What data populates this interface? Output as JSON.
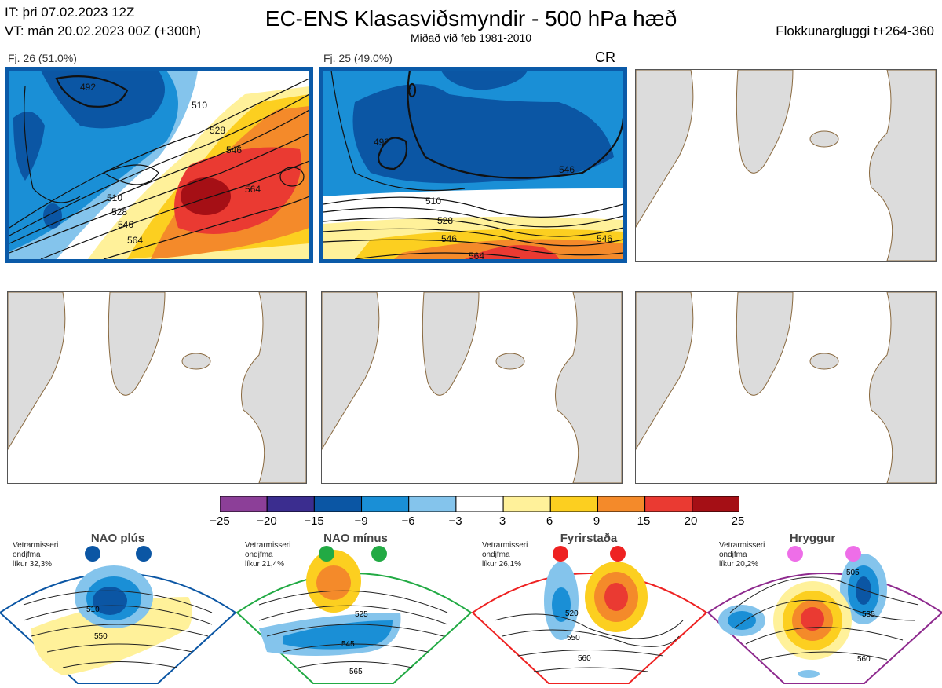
{
  "header": {
    "it": "IT: þri 07.02.2023 12Z",
    "vt": "VT: mán 20.02.2023 00Z  (+300h)",
    "title": "EC-ENS Klasasviðsmyndir - 500 hPa hæð",
    "subtitle": "Miðað við feb 1981-2010",
    "window": "Flokkunargluggi t+264-360"
  },
  "panels": [
    {
      "label": "Fj. 26 (51.0%)",
      "members": 26,
      "percent": 51.0,
      "tag": "",
      "contours": [
        "492",
        "510",
        "528",
        "546",
        "564",
        "510",
        "528",
        "546",
        "564"
      ]
    },
    {
      "label": "Fj. 25 (49.0%)",
      "members": 25,
      "percent": 49.0,
      "tag": "CR",
      "contours": [
        "0",
        "492",
        "510",
        "528",
        "546",
        "564",
        "546",
        "546"
      ]
    }
  ],
  "colorbar": {
    "ticks": [
      "−25",
      "−20",
      "−15",
      "−9",
      "−6",
      "−3",
      "3",
      "6",
      "9",
      "15",
      "20",
      "25"
    ],
    "colors": [
      "#8c3f98",
      "#3b2d8f",
      "#0b56a4",
      "#1a8fd6",
      "#84c4ec",
      "#ffffff",
      "#fff19a",
      "#fccf20",
      "#f48a2a",
      "#ea3a32",
      "#a50f15"
    ]
  },
  "chart_data": {
    "type": "heatmap",
    "title": "EC-ENS Klasasviðsmyndir - 500 hPa hæð",
    "subtitle": "Miðað við feb 1981-2010",
    "variable": "500 hPa geopotential height (dam) with anomaly shading",
    "cluster_members": [
      26,
      25
    ],
    "cluster_percent": [
      51.0,
      49.0
    ],
    "anomaly_levels": [
      -25,
      -20,
      -15,
      -9,
      -6,
      -3,
      3,
      6,
      9,
      15,
      20,
      25
    ],
    "empty_panels": 4
  },
  "regimes": [
    {
      "name": "NAO plús",
      "note": [
        "Vetrarmisseri",
        "ondjfma",
        "líkur 32,3%"
      ],
      "color": "#0b56a4",
      "border": "#0b56a4",
      "labels": [
        "510",
        "550"
      ]
    },
    {
      "name": "NAO mínus",
      "note": [
        "Vetrarmisseri",
        "ondjfma",
        "líkur 21,4%"
      ],
      "color": "#22aa44",
      "border": "#22aa44",
      "labels": [
        "525",
        "545",
        "565"
      ]
    },
    {
      "name": "Fyrirstaða",
      "note": [
        "Vetrarmisseri",
        "ondjfma",
        "líkur 26,1%"
      ],
      "color": "#ee2222",
      "border": "#ee2222",
      "labels": [
        "520",
        "550",
        "560"
      ]
    },
    {
      "name": "Hryggur",
      "note": [
        "Vetrarmisseri",
        "ondjfma",
        "líkur 20,2%"
      ],
      "color": "#ee6ee8",
      "border": "#8e2a8e",
      "labels": [
        "505",
        "535",
        "560"
      ]
    }
  ]
}
